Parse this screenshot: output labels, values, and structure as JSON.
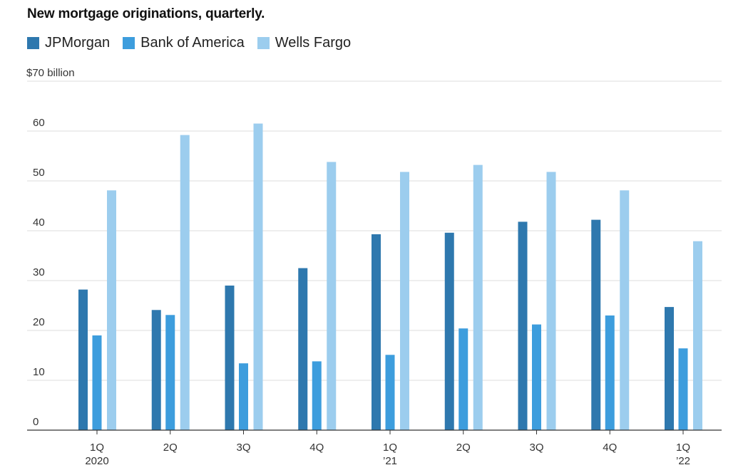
{
  "chart_data": {
    "type": "bar",
    "title": "New mortgage originations, quarterly.",
    "ylabel": "$70 billion",
    "ylim": [
      0,
      70
    ],
    "yticks": [
      0,
      10,
      20,
      30,
      40,
      50,
      60
    ],
    "top_tick_label": "$70 billion",
    "grid": true,
    "legend_position": "top-left",
    "categories": [
      [
        "1Q",
        "2020"
      ],
      [
        "2Q"
      ],
      [
        "3Q"
      ],
      [
        "4Q"
      ],
      [
        "1Q",
        "’21"
      ],
      [
        "2Q"
      ],
      [
        "3Q"
      ],
      [
        "4Q"
      ],
      [
        "1Q",
        "’22"
      ]
    ],
    "series": [
      {
        "name": "JPMorgan",
        "color": "#2e78ae",
        "values": [
          28.2,
          24.1,
          29.0,
          32.5,
          39.3,
          39.6,
          41.8,
          42.2,
          24.7
        ]
      },
      {
        "name": "Bank of America",
        "color": "#3d9ddd",
        "values": [
          19.0,
          23.1,
          13.4,
          13.8,
          15.1,
          20.4,
          21.2,
          23.0,
          16.4
        ]
      },
      {
        "name": "Wells Fargo",
        "color": "#9ccdee",
        "values": [
          48.1,
          59.2,
          61.5,
          53.8,
          51.8,
          53.2,
          51.8,
          48.1,
          37.9
        ]
      }
    ]
  }
}
